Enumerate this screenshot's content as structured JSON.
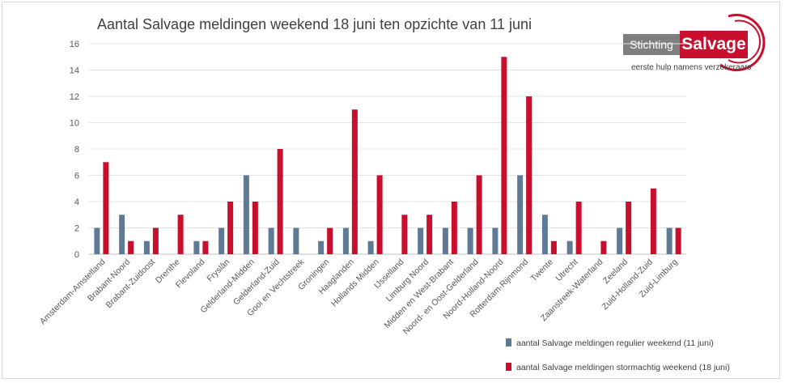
{
  "chart_data": {
    "type": "bar",
    "title": "Aantal Salvage meldingen weekend 18 juni ten opzichte van 11 juni",
    "categories": [
      "Amsterdam-Amstelland",
      "Brabant-Noord",
      "Brabant-Zuidoost",
      "Drenthe",
      "Flevoland",
      "Fryslân",
      "Gelderland-Midden",
      "Gelderland-Zuid",
      "Gooi en Vechtstreek",
      "Groningen",
      "Haaglanden",
      "Hollands Midden",
      "IJsselland",
      "Limburg Noord",
      "Midden en West-Brabant",
      "Noord- en Oost-Gelderland",
      "Noord-Holland-Noord",
      "Rotterdam-Rijnmond",
      "Twente",
      "Utrecht",
      "Zaanstreek-Waterland",
      "Zeeland",
      "Zuid-Holland-Zuid",
      "Zuid-Limburg"
    ],
    "series": [
      {
        "name": "aantal Salvage meldingen regulier weekend (11 juni)",
        "color": "#5f7a95",
        "values": [
          2,
          3,
          1,
          0,
          1,
          2,
          6,
          2,
          2,
          1,
          2,
          1,
          0,
          2,
          2,
          2,
          2,
          6,
          3,
          1,
          0,
          2,
          0,
          2
        ]
      },
      {
        "name": "aantal Salvage meldingen stormachtig weekend (18 juni)",
        "color": "#c8102e",
        "values": [
          7,
          1,
          2,
          3,
          1,
          4,
          4,
          8,
          0,
          2,
          11,
          6,
          3,
          3,
          4,
          6,
          15,
          12,
          1,
          4,
          1,
          4,
          5,
          2
        ]
      }
    ],
    "ylim": [
      0,
      16
    ],
    "yticks": [
      0,
      2,
      4,
      6,
      8,
      10,
      12,
      14,
      16
    ],
    "grid": true,
    "legend_position": "bottom-right"
  },
  "logo": {
    "left_text": "Stichting",
    "right_text": "Salvage",
    "tagline": "eerste hulp namens verzekeraars"
  }
}
